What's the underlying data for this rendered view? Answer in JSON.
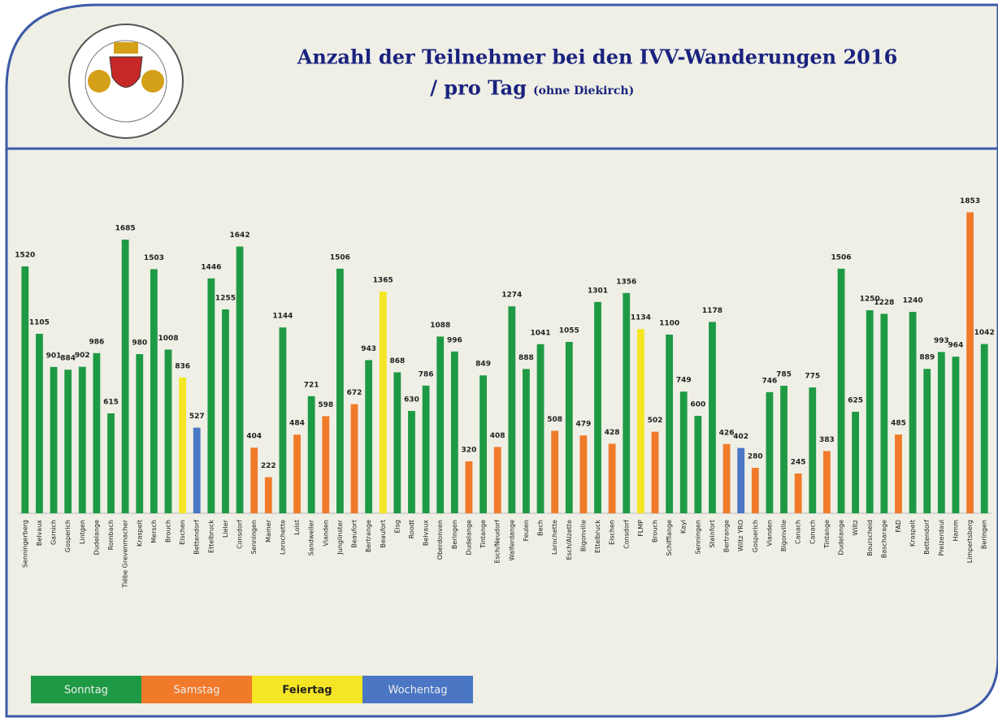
{
  "chart_data": {
    "type": "bar",
    "title": "Anzahl der Teilnehmer bei den IVV-Wanderungen 2016",
    "subtitle": "/ pro Tag",
    "subtitle_note": "(ohne Diekirch)",
    "categories": [
      "Senningerberg",
      "Belvaux",
      "Garnich",
      "Gosperich",
      "Lintgen",
      "Dudelange",
      "Rombach",
      "Tiébe Grevenmacher",
      "Kraspelt",
      "Mersch",
      "Brouch",
      "Eischen",
      "Bettendorf",
      "Ettelbruck",
      "Lieler",
      "Consdorf",
      "Senningen",
      "Mamer",
      "Larochette",
      "Lolst",
      "Sandweiler",
      "Vianden",
      "Junglinster",
      "Beaufort",
      "Bertrange",
      "Beaufort",
      "Eisg",
      "Roodt",
      "Belvaux",
      "Oberdonven",
      "Beringen",
      "Dudelange",
      "Tintange",
      "Esch/Neudorf",
      "Walferdange",
      "Feulen",
      "Bech",
      "Larochette",
      "Esch/Alzette",
      "Bigonville",
      "Ettelbruck",
      "Eischen",
      "Consdorf",
      "FLMP",
      "Brouch",
      "Schifflange",
      "Kayl",
      "Senningen",
      "Steinfort",
      "Bertrange",
      "Wiltz YRO",
      "Gosperich",
      "Vianden",
      "Bigonville",
      "Canach",
      "Canach",
      "Tintange",
      "Dudelange",
      "Wiltz",
      "Bourscheid",
      "Bascharage",
      "FAD",
      "Kraspelt",
      "Bettendorf",
      "Preizerdaul",
      "Hamm",
      "Limpertsberg",
      "Beringen"
    ],
    "values": [
      1520,
      1105,
      901,
      884,
      902,
      986,
      615,
      1685,
      980,
      1503,
      1008,
      836,
      527,
      1446,
      1255,
      1642,
      404,
      222,
      1144,
      484,
      721,
      598,
      1506,
      672,
      943,
      1365,
      868,
      630,
      786,
      1088,
      996,
      320,
      849,
      408,
      1274,
      888,
      1041,
      508,
      1055,
      479,
      1301,
      428,
      1356,
      1134,
      502,
      1100,
      749,
      600,
      1178,
      426,
      402,
      280,
      746,
      785,
      245,
      775,
      383,
      1506,
      625,
      1250,
      1228,
      485,
      1240,
      889,
      993,
      964,
      1853,
      1042
    ],
    "colors": [
      "#1f9a44",
      "#1f9a44",
      "#1f9a44",
      "#1f9a44",
      "#1f9a44",
      "#1f9a44",
      "#1f9a44",
      "#1f9a44",
      "#1f9a44",
      "#1f9a44",
      "#1f9a44",
      "#f5e625",
      "#4a76c4",
      "#1f9a44",
      "#1f9a44",
      "#1f9a44",
      "#f07a2a",
      "#f07a2a",
      "#1f9a44",
      "#f07a2a",
      "#1f9a44",
      "#f07a2a",
      "#1f9a44",
      "#f07a2a",
      "#1f9a44",
      "#f5e625",
      "#1f9a44",
      "#1f9a44",
      "#1f9a44",
      "#1f9a44",
      "#1f9a44",
      "#f07a2a",
      "#1f9a44",
      "#f07a2a",
      "#1f9a44",
      "#1f9a44",
      "#1f9a44",
      "#f07a2a",
      "#1f9a44",
      "#f07a2a",
      "#1f9a44",
      "#f07a2a",
      "#1f9a44",
      "#f5e625",
      "#f07a2a",
      "#1f9a44",
      "#1f9a44",
      "#1f9a44",
      "#1f9a44",
      "#f07a2a",
      "#4a76c4",
      "#f07a2a",
      "#1f9a44",
      "#1f9a44",
      "#f07a2a",
      "#1f9a44",
      "#f07a2a",
      "#1f9a44",
      "#1f9a44",
      "#1f9a44",
      "#1f9a44",
      "#f07a2a",
      "#1f9a44",
      "#1f9a44",
      "#1f9a44",
      "#1f9a44",
      "#f07a2a",
      "#1f9a44"
    ],
    "legend": [
      {
        "name": "Sonntag",
        "color": "#1f9a44"
      },
      {
        "name": "Samstag",
        "color": "#f07a2a"
      },
      {
        "name": "Feiertag",
        "color": "#f5e625"
      },
      {
        "name": "Wochentag",
        "color": "#4a76c4"
      }
    ],
    "ylim": [
      0,
      1900
    ]
  }
}
